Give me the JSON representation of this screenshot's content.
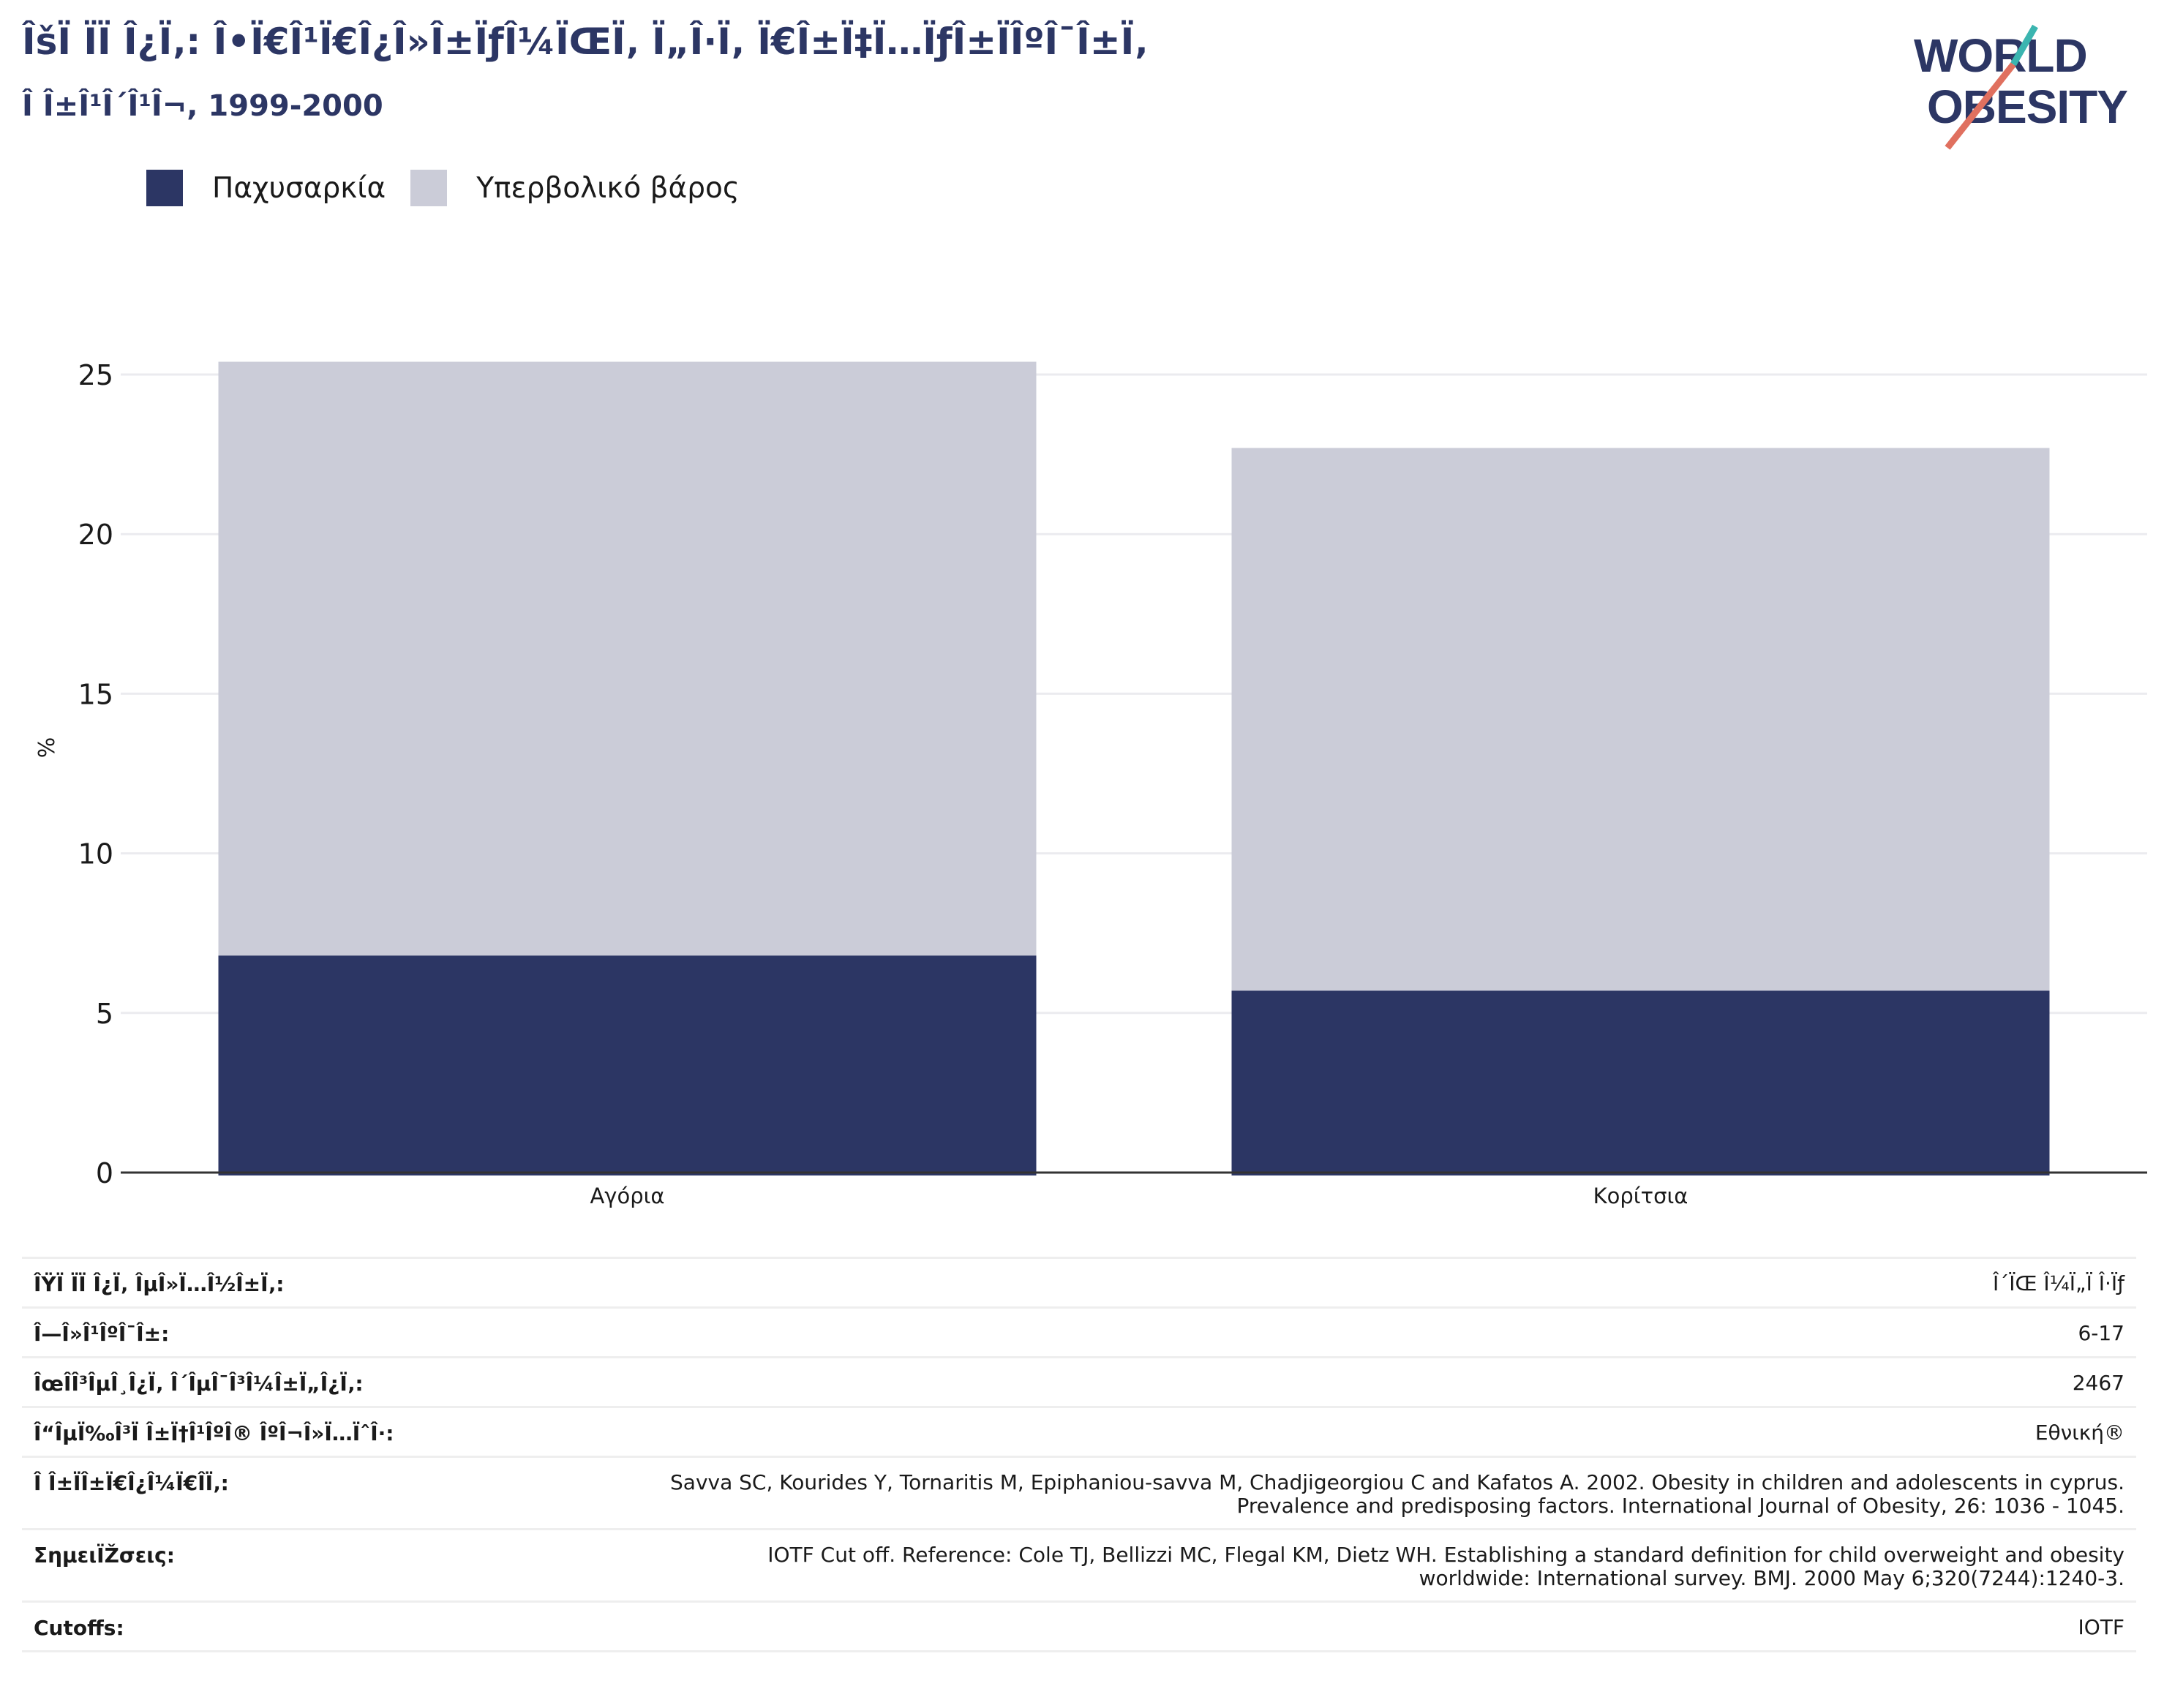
{
  "header": {
    "title": "ÎšÏ ÏÏ Î¿Ï‚: Î•Ï€Î¹Ï€Î¿Î»Î±ÏƒÎ¼ÏŒÏ‚ Ï„Î·Ï‚ Ï€Î±Ï‡Ï…ÏƒÎ±ÏÎºÎ¯Î±Ï‚",
    "subtitle": "Î Î±Î¹Î´Î¹Î¬, 1999-2000"
  },
  "logo": {
    "line1": "WORLD",
    "line2": "OBESITY",
    "accent": "#e0705f",
    "accent2": "#3bb5b0",
    "color": "#2c3664"
  },
  "legend": {
    "items": [
      {
        "label": "Παχυσαρκία",
        "color": "#2c3664"
      },
      {
        "label": "Υπερβολικό βάρος",
        "color": "#cbccd8"
      }
    ]
  },
  "chart_data": {
    "type": "bar",
    "stacked": true,
    "categories": [
      "Αγόρια",
      "Κορίτσια"
    ],
    "series": [
      {
        "name": "Παχυσαρκία",
        "values": [
          6.8,
          5.7
        ],
        "color": "#2c3664"
      },
      {
        "name": "Υπερβολικό βάρος",
        "values": [
          18.6,
          17.0
        ],
        "color": "#cbccd8"
      }
    ],
    "ylabel": "%",
    "ylim": [
      0,
      25
    ],
    "yticks": [
      0,
      5,
      10,
      15,
      20,
      25
    ],
    "grid": true,
    "legend_position": "top-left"
  },
  "info": {
    "rows": [
      {
        "label": "ÎŸÏ ÏÏ Î¿Ï‚ ÎµÎ»Ï…Î½Î±Ï‚:",
        "value": "Î´ÏŒ Î¼Ï„Ï Î·Ïƒ"
      },
      {
        "label": "Î—Î»Î¹ÎºÎ¯Î±:",
        "value": "6-17"
      },
      {
        "label": "ÎœÎ­Î³ÎµÎ¸Î¿Ï‚ Î´ÎµÎ¯Î³Î¼Î±Ï„Î¿Ï‚:",
        "value": "2467"
      },
      {
        "label": "Î“ÎµÏ‰Î³Ï Î±Ï†Î¹ÎºÎ® ÎºÎ¬Î»Ï…ÏˆÎ·:",
        "value": "Εθνική®"
      },
      {
        "label": "Î Î±ÏÎ±Ï€Î¿Î¼Ï€Î­Ï‚:",
        "value": "Savva SC, Kourides Y, Tornaritis M, Epiphaniou-savva M, Chadjigeorgiou C and Kafatos A. 2002. Obesity in children and adolescents in cyprus.\nPrevalence and predisposing factors. International Journal of Obesity, 26: 1036 - 1045."
      },
      {
        "label": "ΣημειÏŽσεις:",
        "value": "IOTF Cut off. Reference: Cole TJ, Bellizzi MC, Flegal KM, Dietz WH. Establishing a standard definition for child overweight and obesity\nworldwide: International survey. BMJ. 2000 May 6;320(7244):1240-3."
      },
      {
        "label": "Cutoffs:",
        "value": "IOTF"
      }
    ]
  }
}
